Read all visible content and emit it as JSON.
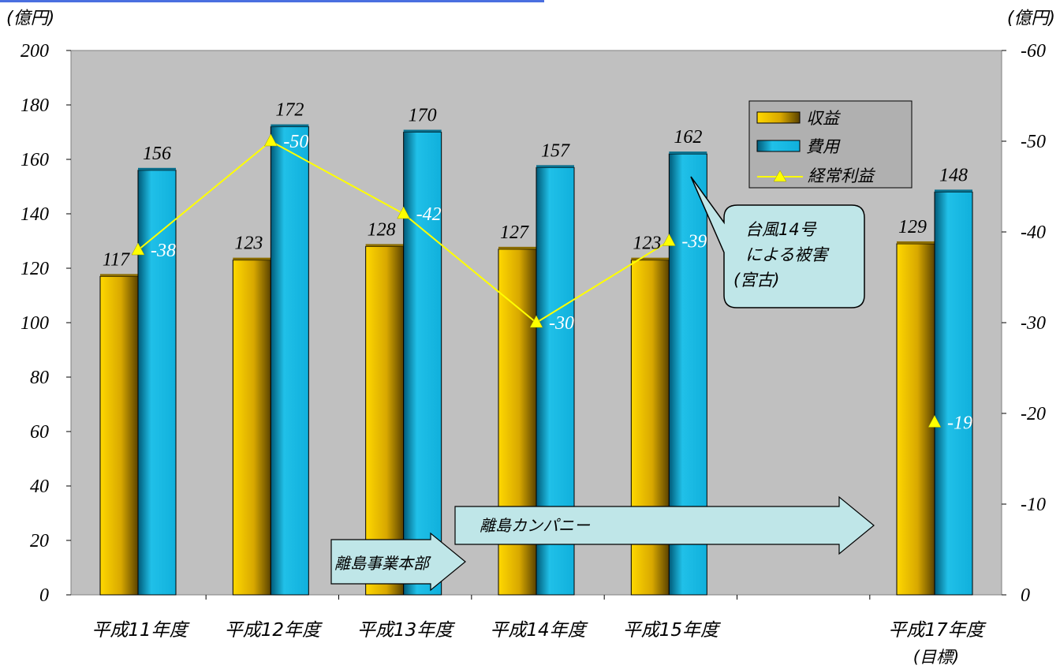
{
  "chart_data": {
    "type": "bar",
    "categories": [
      "平成11年度",
      "平成12年度",
      "平成13年度",
      "平成14年度",
      "平成15年度",
      "",
      "平成17年度"
    ],
    "category_sublabels": [
      "",
      "",
      "",
      "",
      "",
      "",
      "(目標)"
    ],
    "ylabel_left": "(億円)",
    "ylabel_right": "(億円)",
    "ylim_left": [
      0,
      200
    ],
    "yticks_left": [
      0,
      20,
      40,
      60,
      80,
      100,
      120,
      140,
      160,
      180,
      200
    ],
    "ylim_right": [
      0,
      -60
    ],
    "yticks_right": [
      0,
      -10,
      -20,
      -30,
      -40,
      -50,
      -60
    ],
    "grid": false,
    "legend_position": "top-right",
    "series": [
      {
        "name": "収益",
        "kind": "bar",
        "axis": "left",
        "values": [
          117,
          123,
          128,
          127,
          123,
          null,
          129
        ],
        "labels": [
          "117",
          "123",
          "128",
          "127",
          "123",
          "",
          "129"
        ],
        "color": "#e8b800"
      },
      {
        "name": "費用",
        "kind": "bar",
        "axis": "left",
        "values": [
          156,
          172,
          170,
          157,
          162,
          null,
          148
        ],
        "labels": [
          "156",
          "172",
          "170",
          "157",
          "162",
          "",
          "148"
        ],
        "color": "#1ab0d8"
      },
      {
        "name": "経常利益",
        "kind": "line",
        "axis": "right",
        "values": [
          -38,
          -50,
          -42,
          -30,
          -39,
          null,
          -19
        ],
        "labels": [
          "-38",
          "-50",
          "-42",
          "-30",
          "-39",
          "",
          "-19"
        ],
        "color": "#ffff00"
      }
    ],
    "annotations": {
      "callout": [
        "台風14号",
        "による被害",
        "(宮古)"
      ],
      "arrow_jigyo": "離島事業本部",
      "arrow_company": "離島カンパニー"
    },
    "colors": {
      "plot_bg": "#c0c0c0",
      "callout_fill": "#bfe6e8",
      "arrow_fill": "#bfe6e8"
    }
  }
}
